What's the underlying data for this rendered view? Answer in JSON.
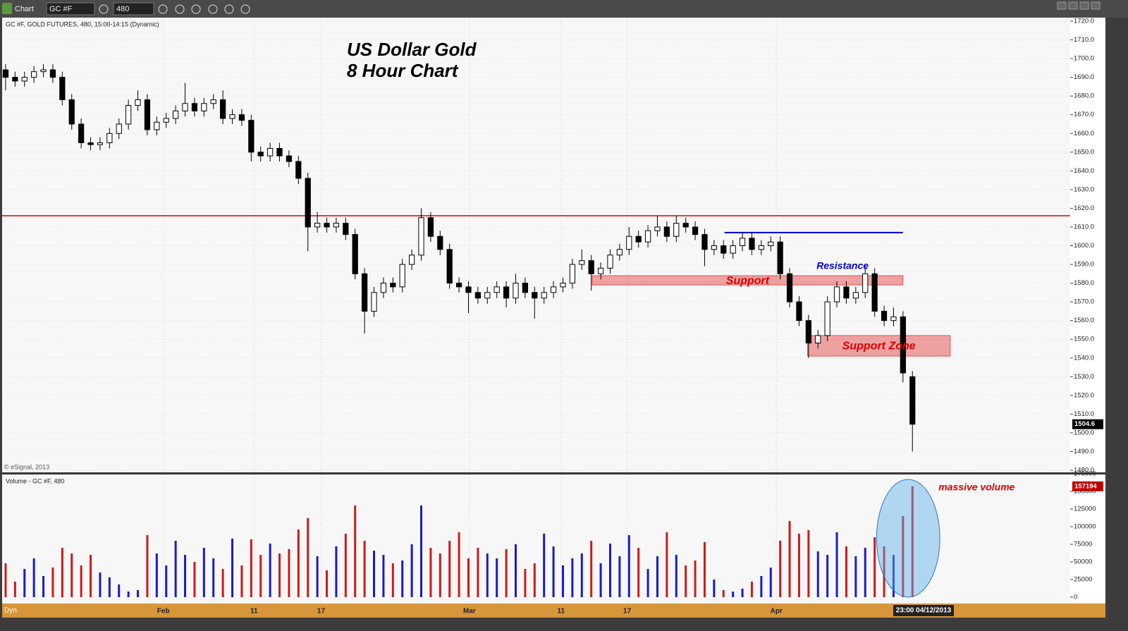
{
  "toolbar": {
    "title": "Chart",
    "symbol": "GC #F",
    "interval": "480"
  },
  "status_bar": {
    "mode": "Dyn",
    "cursor_time": "23:00 04/12/2013"
  },
  "chart_data": [
    {
      "type": "candlestick",
      "header": "GC #F, GOLD FUTURES, 480, 15:00-14:15 (Dynamic)",
      "title": "US Dollar Gold",
      "subtitle": "8 Hour Chart",
      "credit": "© eSignal, 2013",
      "open": [
        1694,
        1690,
        1688,
        1690,
        1693,
        1694,
        1690,
        1678,
        1665,
        1655,
        1654,
        1655,
        1660,
        1665,
        1675,
        1678,
        1662,
        1666,
        1668,
        1672,
        1676,
        1672,
        1676,
        1678,
        1668,
        1670,
        1667,
        1650,
        1648,
        1652,
        1648,
        1645,
        1636,
        1610,
        1612,
        1610,
        1612,
        1606,
        1585,
        1565,
        1575,
        1580,
        1578,
        1590,
        1595,
        1615,
        1605,
        1598,
        1580,
        1578,
        1575,
        1572,
        1575,
        1578,
        1572,
        1580,
        1575,
        1572,
        1575,
        1578,
        1580,
        1590,
        1592,
        1585,
        1588,
        1595,
        1598,
        1605,
        1602,
        1608,
        1610,
        1605,
        1612,
        1610,
        1606,
        1598,
        1600,
        1596,
        1600,
        1604,
        1598,
        1600,
        1602,
        1585,
        1570,
        1560,
        1548,
        1552,
        1570,
        1578,
        1572,
        1575,
        1585,
        1565,
        1560,
        1562,
        1530
      ],
      "high": [
        1697,
        1693,
        1693,
        1696,
        1697,
        1697,
        1693,
        1681,
        1668,
        1658,
        1658,
        1663,
        1668,
        1678,
        1683,
        1681,
        1669,
        1671,
        1675,
        1687,
        1679,
        1679,
        1681,
        1683,
        1673,
        1673,
        1670,
        1653,
        1655,
        1655,
        1651,
        1648,
        1639,
        1618,
        1615,
        1615,
        1615,
        1609,
        1588,
        1578,
        1583,
        1583,
        1593,
        1598,
        1620,
        1618,
        1608,
        1601,
        1583,
        1581,
        1578,
        1578,
        1581,
        1581,
        1585,
        1583,
        1578,
        1578,
        1581,
        1583,
        1593,
        1598,
        1595,
        1591,
        1598,
        1601,
        1610,
        1608,
        1611,
        1616,
        1613,
        1616,
        1615,
        1613,
        1609,
        1603,
        1603,
        1603,
        1607,
        1607,
        1603,
        1605,
        1605,
        1588,
        1573,
        1563,
        1555,
        1573,
        1581,
        1581,
        1578,
        1589,
        1588,
        1568,
        1567,
        1565,
        1533
      ],
      "low": [
        1683,
        1685,
        1685,
        1687,
        1690,
        1687,
        1675,
        1662,
        1652,
        1651,
        1651,
        1652,
        1657,
        1662,
        1672,
        1659,
        1659,
        1663,
        1665,
        1669,
        1669,
        1669,
        1673,
        1665,
        1665,
        1664,
        1645,
        1645,
        1645,
        1645,
        1642,
        1633,
        1597,
        1607,
        1607,
        1607,
        1603,
        1582,
        1553,
        1562,
        1572,
        1575,
        1575,
        1587,
        1592,
        1602,
        1595,
        1577,
        1575,
        1564,
        1569,
        1569,
        1572,
        1567,
        1569,
        1572,
        1561,
        1569,
        1572,
        1575,
        1577,
        1587,
        1576,
        1582,
        1585,
        1592,
        1595,
        1599,
        1599,
        1605,
        1602,
        1602,
        1607,
        1603,
        1589,
        1595,
        1593,
        1593,
        1597,
        1595,
        1595,
        1597,
        1582,
        1567,
        1557,
        1540,
        1545,
        1549,
        1567,
        1569,
        1569,
        1572,
        1562,
        1557,
        1557,
        1527,
        1490
      ],
      "close": [
        1690,
        1688,
        1690,
        1693,
        1694,
        1690,
        1678,
        1665,
        1655,
        1654,
        1655,
        1660,
        1665,
        1675,
        1678,
        1662,
        1666,
        1668,
        1672,
        1676,
        1672,
        1676,
        1678,
        1668,
        1670,
        1667,
        1650,
        1648,
        1652,
        1648,
        1645,
        1636,
        1610,
        1612,
        1610,
        1612,
        1606,
        1585,
        1565,
        1575,
        1580,
        1578,
        1590,
        1595,
        1615,
        1605,
        1598,
        1580,
        1578,
        1575,
        1572,
        1575,
        1578,
        1572,
        1580,
        1575,
        1572,
        1575,
        1578,
        1580,
        1590,
        1592,
        1585,
        1588,
        1595,
        1598,
        1605,
        1602,
        1608,
        1610,
        1605,
        1612,
        1610,
        1606,
        1598,
        1600,
        1596,
        1600,
        1604,
        1598,
        1600,
        1602,
        1585,
        1570,
        1560,
        1548,
        1552,
        1570,
        1578,
        1572,
        1575,
        1585,
        1565,
        1560,
        1562,
        1532,
        1504.6
      ],
      "up_color": "#ffffff",
      "down_color": "#000000",
      "xlim": [
        -0.37,
        112.7
      ],
      "xticks": [
        {
          "value": 16.7,
          "label": "Feb"
        },
        {
          "value": 26.3,
          "label": "11"
        },
        {
          "value": 33.4,
          "label": "17"
        },
        {
          "value": 49.1,
          "label": "Mar"
        },
        {
          "value": 58.8,
          "label": "11"
        },
        {
          "value": 65.8,
          "label": "17"
        },
        {
          "value": 81.6,
          "label": "Apr"
        }
      ],
      "ylim": [
        1480,
        1720
      ],
      "yticks": [
        {
          "value": 1480,
          "label": "1480.0"
        },
        {
          "value": 1490,
          "label": "1490.0"
        },
        {
          "value": 1500,
          "label": "1500.0"
        },
        {
          "value": 1510,
          "label": "1510.0"
        },
        {
          "value": 1520,
          "label": "1520.0"
        },
        {
          "value": 1530,
          "label": "1530.0"
        },
        {
          "value": 1540,
          "label": "1540.0"
        },
        {
          "value": 1550,
          "label": "1550.0"
        },
        {
          "value": 1560,
          "label": "1560.0"
        },
        {
          "value": 1570,
          "label": "1570.0"
        },
        {
          "value": 1580,
          "label": "1580.0"
        },
        {
          "value": 1590,
          "label": "1590.0"
        },
        {
          "value": 1600,
          "label": "1600.0"
        },
        {
          "value": 1610,
          "label": "1610.0"
        },
        {
          "value": 1620,
          "label": "1620.0"
        },
        {
          "value": 1630,
          "label": "1630.0"
        },
        {
          "value": 1640,
          "label": "1640.0"
        },
        {
          "value": 1650,
          "label": "1650.0"
        },
        {
          "value": 1660,
          "label": "1660.0"
        },
        {
          "value": 1670,
          "label": "1670.0"
        },
        {
          "value": 1680,
          "label": "1680.0"
        },
        {
          "value": 1690,
          "label": "1690.0"
        },
        {
          "value": 1700,
          "label": "1700.0"
        },
        {
          "value": 1710,
          "label": "1710.0"
        },
        {
          "value": 1720,
          "label": "1720.0"
        }
      ],
      "grid": true,
      "annotations": [
        {
          "type": "hline",
          "level": 1616,
          "color": "#dd0000"
        },
        {
          "type": "segment",
          "level": 1607,
          "x": [
            76.1,
            95
          ],
          "color": "#0000cc"
        },
        {
          "type": "zone",
          "range": [
            1579,
            1584
          ],
          "x": [
            62.1,
            95
          ],
          "label": "Support",
          "color": "#dd0000"
        },
        {
          "type": "zone",
          "range": [
            1541,
            1552
          ],
          "x": [
            84.9,
            100
          ],
          "label": "Support Zone",
          "color": "#dd0000"
        },
        {
          "type": "text",
          "label": "Resistance",
          "at": [
            88.6,
            1589
          ],
          "color": "#0000cc"
        }
      ]
    },
    {
      "type": "bar",
      "title": "Volume - GC #F, 480",
      "values": [
        48000,
        22000,
        40000,
        55000,
        30000,
        42000,
        70000,
        62000,
        45000,
        60000,
        35000,
        28000,
        18000,
        8000,
        10000,
        88000,
        62000,
        45000,
        80000,
        60000,
        50000,
        70000,
        55000,
        40000,
        83000,
        45000,
        82000,
        60000,
        76000,
        62000,
        68000,
        96000,
        112000,
        58000,
        38000,
        72000,
        90000,
        130000,
        80000,
        66000,
        60000,
        48000,
        52000,
        75000,
        130000,
        70000,
        62000,
        80000,
        92000,
        55000,
        70000,
        62000,
        55000,
        68000,
        75000,
        40000,
        48000,
        90000,
        72000,
        45000,
        55000,
        62000,
        80000,
        48000,
        76000,
        58000,
        88000,
        70000,
        40000,
        58000,
        92000,
        60000,
        45000,
        52000,
        78000,
        25000,
        10000,
        8000,
        12000,
        22000,
        30000,
        42000,
        80000,
        108000,
        90000,
        95000,
        65000,
        60000,
        92000,
        72000,
        58000,
        70000,
        85000,
        72000,
        60000,
        115000,
        157194
      ],
      "up_color": "#1a1acc",
      "down_color": "#cc1a1a",
      "ylim": [
        0,
        175000
      ],
      "yticks": [
        0,
        25000,
        50000,
        75000,
        100000,
        125000,
        150000,
        175000
      ],
      "annotations": [
        {
          "type": "ellipse",
          "x": [
            92.2,
            98.9
          ],
          "y": [
            0,
            167000
          ],
          "color": "#5aaee8"
        },
        {
          "type": "text",
          "label": "massive volume",
          "at": [
            102.8,
            155000
          ],
          "color": "#dd0000"
        }
      ]
    }
  ]
}
